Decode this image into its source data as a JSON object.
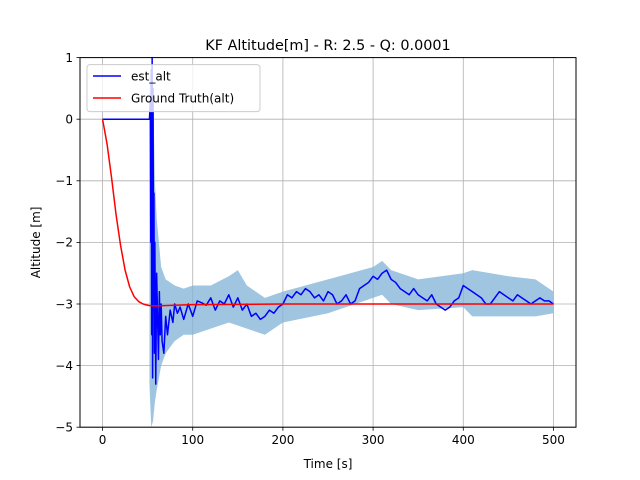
{
  "chart_data": {
    "type": "line",
    "title": "KF Altitude[m] - R: 2.5 - Q: 0.0001",
    "xlabel": "Time [s]",
    "ylabel": "Altitude [m]",
    "xlim": [
      -25,
      525
    ],
    "ylim": [
      -5,
      1
    ],
    "xticks": [
      0,
      100,
      200,
      300,
      400,
      500
    ],
    "yticks": [
      -5,
      -4,
      -3,
      -2,
      -1,
      0,
      1
    ],
    "x_tick_labels": [
      "0",
      "100",
      "200",
      "300",
      "400",
      "500"
    ],
    "y_tick_labels": [
      "−5",
      "−4",
      "−3",
      "−2",
      "−1",
      "0",
      "1"
    ],
    "grid": true,
    "legend_position": "top-left",
    "colors": {
      "est_alt": "#0000ff",
      "ground_truth": "#ff0000",
      "uncertainty_band": "#7fb1d6"
    },
    "series": [
      {
        "name": "est_alt",
        "color": "#0000ff",
        "x": [
          0,
          10,
          20,
          30,
          40,
          52,
          53,
          53.5,
          54,
          54.5,
          55,
          55.5,
          56,
          56.5,
          57,
          57.5,
          58,
          59,
          60,
          61,
          62,
          63,
          64,
          65,
          66,
          68,
          70,
          72,
          75,
          78,
          80,
          83,
          86,
          90,
          95,
          100,
          105,
          110,
          115,
          120,
          125,
          130,
          135,
          140,
          145,
          150,
          155,
          160,
          165,
          170,
          175,
          180,
          185,
          190,
          195,
          200,
          205,
          210,
          215,
          220,
          225,
          230,
          235,
          240,
          245,
          250,
          255,
          260,
          265,
          270,
          275,
          280,
          285,
          290,
          295,
          300,
          305,
          310,
          315,
          320,
          325,
          330,
          335,
          340,
          345,
          350,
          355,
          360,
          365,
          370,
          375,
          380,
          385,
          390,
          395,
          400,
          405,
          410,
          415,
          420,
          425,
          430,
          435,
          440,
          445,
          450,
          455,
          460,
          465,
          470,
          475,
          480,
          485,
          490,
          495,
          500
        ],
        "y": [
          0,
          0,
          0,
          0,
          0,
          0,
          0.3,
          -2.0,
          0.8,
          -3.5,
          1.0,
          -4.2,
          0.5,
          -2.5,
          -1.2,
          -3.8,
          -2.0,
          -4.3,
          -2.5,
          -3.2,
          -3.9,
          -2.8,
          -3.5,
          -3.0,
          -3.6,
          -3.8,
          -3.2,
          -3.5,
          -3.1,
          -3.3,
          -3.0,
          -3.15,
          -3.05,
          -3.25,
          -3.0,
          -3.2,
          -2.95,
          -2.98,
          -3.02,
          -2.9,
          -3.1,
          -2.95,
          -3.0,
          -2.85,
          -3.05,
          -2.9,
          -3.1,
          -3.0,
          -3.2,
          -3.15,
          -3.25,
          -3.2,
          -3.1,
          -3.15,
          -3.05,
          -3.0,
          -2.85,
          -2.9,
          -2.8,
          -2.85,
          -2.75,
          -2.8,
          -2.9,
          -2.85,
          -2.95,
          -2.8,
          -2.85,
          -3.0,
          -2.95,
          -2.85,
          -3.0,
          -2.95,
          -2.75,
          -2.7,
          -2.65,
          -2.55,
          -2.6,
          -2.5,
          -2.45,
          -2.6,
          -2.65,
          -2.75,
          -2.8,
          -2.85,
          -2.75,
          -2.85,
          -2.9,
          -2.95,
          -2.85,
          -3.0,
          -3.05,
          -3.1,
          -3.05,
          -2.95,
          -2.9,
          -2.7,
          -2.75,
          -2.8,
          -2.85,
          -2.9,
          -3.0,
          -3.0,
          -2.9,
          -2.8,
          -2.85,
          -2.9,
          -2.95,
          -2.85,
          -2.9,
          -2.95,
          -3.0,
          -2.95,
          -2.9,
          -2.95,
          -2.95,
          -3.0
        ]
      },
      {
        "name": "Ground Truth(alt)",
        "color": "#ff0000",
        "x": [
          0,
          5,
          10,
          15,
          20,
          25,
          30,
          35,
          40,
          45,
          50,
          55,
          60,
          100,
          200,
          300,
          400,
          500
        ],
        "y": [
          0,
          -0.4,
          -0.95,
          -1.55,
          -2.05,
          -2.45,
          -2.72,
          -2.88,
          -2.96,
          -3.0,
          -3.02,
          -3.03,
          -3.03,
          -3.01,
          -3.0,
          -3.0,
          -3.0,
          -3.0
        ]
      }
    ],
    "band": {
      "name": "uncertainty",
      "color": "#7fb1d6",
      "x": [
        52,
        54,
        56,
        58,
        60,
        65,
        70,
        80,
        90,
        100,
        120,
        140,
        150,
        160,
        180,
        200,
        250,
        300,
        310,
        320,
        350,
        400,
        410,
        450,
        480,
        500
      ],
      "upper": [
        0.4,
        0.9,
        0.6,
        -1.0,
        -1.6,
        -2.4,
        -2.6,
        -2.7,
        -2.75,
        -2.7,
        -2.7,
        -2.55,
        -2.45,
        -2.7,
        -2.9,
        -2.8,
        -2.6,
        -2.4,
        -2.3,
        -2.45,
        -2.6,
        -2.5,
        -2.45,
        -2.55,
        -2.6,
        -2.8
      ],
      "lower": [
        -4.3,
        -5.0,
        -4.9,
        -4.6,
        -4.4,
        -4.0,
        -3.8,
        -3.6,
        -3.5,
        -3.5,
        -3.4,
        -3.3,
        -3.35,
        -3.4,
        -3.5,
        -3.3,
        -3.15,
        -2.9,
        -2.85,
        -3.0,
        -3.1,
        -3.05,
        -3.2,
        -3.2,
        -3.2,
        -3.15
      ]
    }
  }
}
